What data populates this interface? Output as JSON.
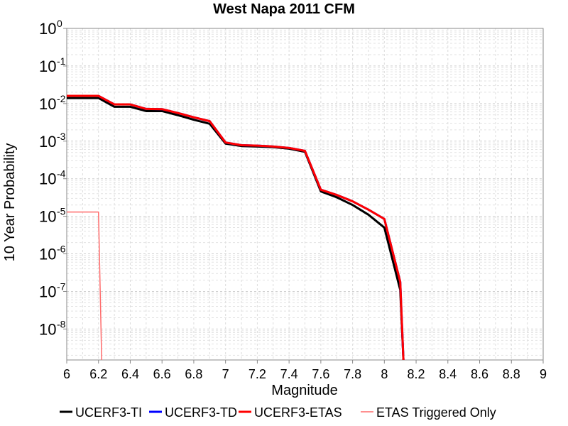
{
  "chart_data": {
    "type": "line",
    "title": "West Napa 2011 CFM",
    "xlabel": "Magnitude",
    "ylabel": "10 Year Probability",
    "xlim": [
      6,
      9
    ],
    "ylim": [
      1.5e-09,
      1
    ],
    "y_scale": "log",
    "grid": true,
    "legend_position": "bottom",
    "x_ticks": [
      "6",
      "6.2",
      "6.4",
      "6.6",
      "6.8",
      "7",
      "7.2",
      "7.4",
      "7.6",
      "7.8",
      "8",
      "8.2",
      "8.4",
      "8.6",
      "8.8",
      "9"
    ],
    "y_ticks": [
      {
        "base": "10",
        "exp": "0",
        "value": 1
      },
      {
        "base": "10",
        "exp": "-1",
        "value": 0.1
      },
      {
        "base": "10",
        "exp": "-2",
        "value": 0.01
      },
      {
        "base": "10",
        "exp": "-3",
        "value": 0.001
      },
      {
        "base": "10",
        "exp": "-4",
        "value": 0.0001
      },
      {
        "base": "10",
        "exp": "-5",
        "value": 1e-05
      },
      {
        "base": "10",
        "exp": "-6",
        "value": 1e-06
      },
      {
        "base": "10",
        "exp": "-7",
        "value": 1e-07
      },
      {
        "base": "10",
        "exp": "-8",
        "value": 1e-08
      }
    ],
    "series": [
      {
        "name": "UCERF3-TI",
        "color": "#000000",
        "width": 3,
        "x": [
          6.0,
          6.2,
          6.3,
          6.4,
          6.5,
          6.6,
          6.7,
          6.8,
          6.9,
          7.0,
          7.1,
          7.2,
          7.3,
          7.4,
          7.5,
          7.6,
          7.7,
          7.8,
          7.9,
          8.0,
          8.1,
          8.12
        ],
        "y": [
          0.014,
          0.014,
          0.0082,
          0.0082,
          0.0063,
          0.0063,
          0.0049,
          0.0037,
          0.0029,
          0.00086,
          0.00074,
          0.00072,
          0.00069,
          0.00063,
          0.00052,
          4.6e-05,
          3.2e-05,
          2e-05,
          1.1e-05,
          5e-06,
          1.1e-07,
          1e-09
        ]
      },
      {
        "name": "UCERF3-TD",
        "color": "#0000ff",
        "width": 3,
        "x": [
          6.0,
          6.2,
          6.3,
          6.4,
          6.5,
          6.6,
          6.7,
          6.8,
          6.9,
          7.0,
          7.1,
          7.2,
          7.3,
          7.4,
          7.5,
          7.6,
          7.7,
          7.8,
          7.9,
          8.0,
          8.1,
          8.12
        ],
        "y": [
          0.016,
          0.016,
          0.0095,
          0.0095,
          0.0072,
          0.0071,
          0.0056,
          0.0043,
          0.0034,
          0.00092,
          0.00078,
          0.00076,
          0.00072,
          0.00066,
          0.00055,
          5.1e-05,
          3.7e-05,
          2.5e-05,
          1.5e-05,
          8.5e-06,
          1.8e-07,
          1e-09
        ]
      },
      {
        "name": "UCERF3-ETAS",
        "color": "#ff0000",
        "width": 3,
        "x": [
          6.0,
          6.2,
          6.3,
          6.4,
          6.5,
          6.6,
          6.7,
          6.8,
          6.9,
          7.0,
          7.1,
          7.2,
          7.3,
          7.4,
          7.5,
          7.6,
          7.7,
          7.8,
          7.9,
          8.0,
          8.1,
          8.12
        ],
        "y": [
          0.016,
          0.016,
          0.0095,
          0.0095,
          0.0072,
          0.0071,
          0.0056,
          0.0043,
          0.0034,
          0.00092,
          0.00078,
          0.00076,
          0.00072,
          0.00066,
          0.00055,
          5.1e-05,
          3.7e-05,
          2.5e-05,
          1.5e-05,
          8.5e-06,
          1.8e-07,
          1e-09
        ]
      },
      {
        "name": "ETAS Triggered Only",
        "color": "#ff6b6b",
        "width": 1.5,
        "x": [
          6.0,
          6.2,
          6.22
        ],
        "y": [
          1.3e-05,
          1.3e-05,
          1e-09
        ]
      }
    ]
  }
}
